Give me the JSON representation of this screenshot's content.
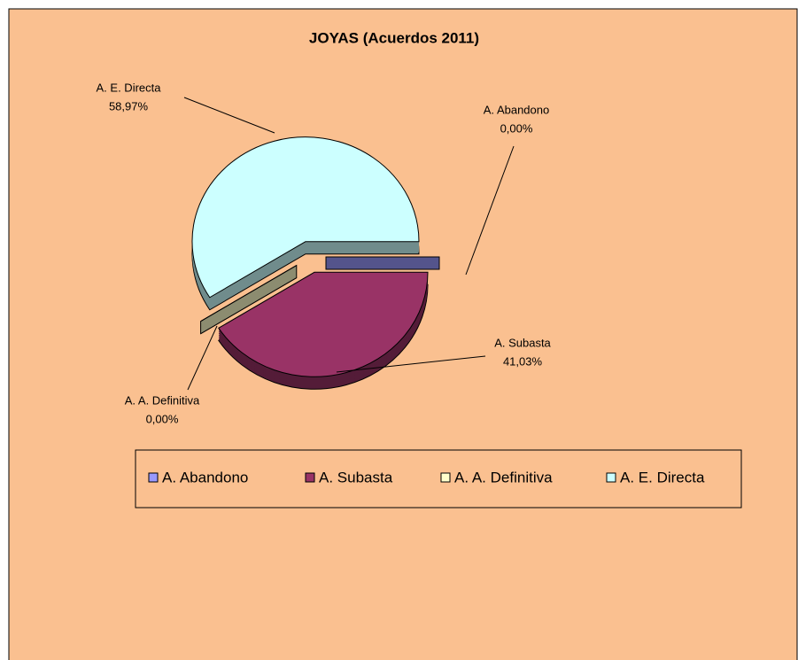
{
  "chart_data": {
    "type": "pie",
    "title": "JOYAS (Acuerdos 2011)",
    "categories": [
      "A. Abandono",
      "A. Subasta",
      "A. A. Definitiva",
      "A. E. Directa"
    ],
    "values": [
      0.0,
      41.03,
      0.0,
      58.97
    ],
    "value_labels": [
      "0,00%",
      "41,03%",
      "0,00%",
      "58,97%"
    ],
    "colors": [
      "#9999ff",
      "#993366",
      "#ffffcc",
      "#ccffff"
    ],
    "legend": "bottom"
  }
}
